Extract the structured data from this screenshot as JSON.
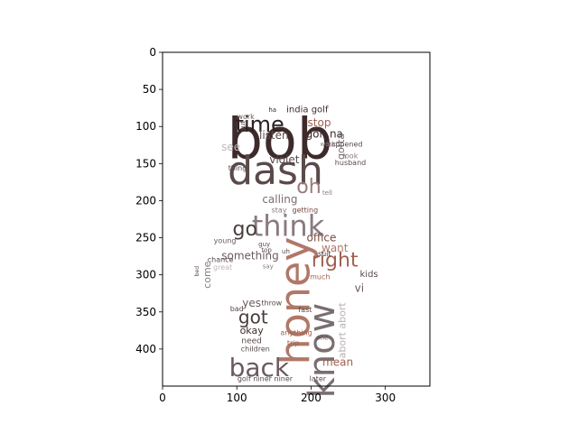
{
  "chart_data": {
    "type": "wordcloud",
    "xlim": [
      0,
      360
    ],
    "ylim": [
      450,
      0
    ],
    "x_ticks": [
      0,
      100,
      200,
      300
    ],
    "y_ticks": [
      0,
      50,
      100,
      150,
      200,
      250,
      300,
      350,
      400
    ],
    "grid": false,
    "legend": "none",
    "words": [
      {
        "text": "bob",
        "x": 158,
        "y": 117,
        "size": 62,
        "color": "#3d2b2b"
      },
      {
        "text": "dash",
        "x": 152,
        "y": 160,
        "size": 44,
        "color": "#5a4a4a"
      },
      {
        "text": "time",
        "x": 131,
        "y": 97,
        "size": 24,
        "color": "#2e2020"
      },
      {
        "text": "think",
        "x": 169,
        "y": 234,
        "size": 32,
        "color": "#8a7a80"
      },
      {
        "text": "honey",
        "x": 178,
        "y": 335,
        "size": 46,
        "color": "#b07868",
        "rotate": -90
      },
      {
        "text": "know",
        "x": 215,
        "y": 402,
        "size": 40,
        "color": "#7a6e70",
        "rotate": -90
      },
      {
        "text": "back",
        "x": 130,
        "y": 425,
        "size": 28,
        "color": "#6a5a60"
      },
      {
        "text": "oh",
        "x": 197,
        "y": 182,
        "size": 22,
        "color": "#9a7a7a"
      },
      {
        "text": "go",
        "x": 111,
        "y": 239,
        "size": 22,
        "color": "#4a3e3e"
      },
      {
        "text": "right",
        "x": 232,
        "y": 281,
        "size": 22,
        "color": "#a06050"
      },
      {
        "text": "got",
        "x": 122,
        "y": 357,
        "size": 20,
        "color": "#4a3a3a"
      },
      {
        "text": "stop",
        "x": 211,
        "y": 95,
        "size": 12,
        "color": "#a06050"
      },
      {
        "text": "gon na",
        "x": 218,
        "y": 110,
        "size": 12,
        "color": "#3d2b2b"
      },
      {
        "text": "listen",
        "x": 150,
        "y": 112,
        "size": 12,
        "color": "#5a4a4a"
      },
      {
        "text": "india golf",
        "x": 195,
        "y": 78,
        "size": 10,
        "color": "#3d2b2b"
      },
      {
        "text": "see",
        "x": 92,
        "y": 128,
        "size": 12,
        "color": "#c0b8b8"
      },
      {
        "text": "violet",
        "x": 164,
        "y": 145,
        "size": 12,
        "color": "#5a4a4a"
      },
      {
        "text": "calling",
        "x": 158,
        "y": 198,
        "size": 12,
        "color": "#7a6e70"
      },
      {
        "text": "office",
        "x": 214,
        "y": 250,
        "size": 12,
        "color": "#7a4a40"
      },
      {
        "text": "want",
        "x": 232,
        "y": 264,
        "size": 12,
        "color": "#b07868"
      },
      {
        "text": "something",
        "x": 118,
        "y": 274,
        "size": 12,
        "color": "#6a5a60"
      },
      {
        "text": "kids",
        "x": 278,
        "y": 300,
        "size": 10,
        "color": "#5a4a4a"
      },
      {
        "text": "vi",
        "x": 265,
        "y": 318,
        "size": 12,
        "color": "#6a5a60"
      },
      {
        "text": "yes",
        "x": 120,
        "y": 338,
        "size": 12,
        "color": "#6a5a60"
      },
      {
        "text": "okay",
        "x": 120,
        "y": 375,
        "size": 11,
        "color": "#3d2b2b"
      },
      {
        "text": "mean",
        "x": 236,
        "y": 418,
        "size": 12,
        "color": "#a06050"
      },
      {
        "text": "come",
        "x": 60,
        "y": 300,
        "size": 11,
        "color": "#8a7a80",
        "rotate": -90
      },
      {
        "text": "abort abort",
        "x": 242,
        "y": 375,
        "size": 11,
        "color": "#b8b0b0",
        "rotate": -90
      },
      {
        "text": "gotta",
        "x": 240,
        "y": 127,
        "size": 11,
        "color": "#7a6e70",
        "rotate": -90
      },
      {
        "text": "work",
        "x": 112,
        "y": 87,
        "size": 8,
        "color": "#6a5a60"
      },
      {
        "text": "put",
        "x": 108,
        "y": 100,
        "size": 8,
        "color": "#5a4a4a",
        "rotate": -90
      },
      {
        "text": "happened",
        "x": 245,
        "y": 124,
        "size": 8,
        "color": "#5a4a4a"
      },
      {
        "text": "look",
        "x": 253,
        "y": 140,
        "size": 8,
        "color": "#8a7a80"
      },
      {
        "text": "husband",
        "x": 253,
        "y": 149,
        "size": 8,
        "color": "#5a4a4a"
      },
      {
        "text": "thing",
        "x": 101,
        "y": 156,
        "size": 8,
        "color": "#5a4a4a"
      },
      {
        "text": "getting",
        "x": 192,
        "y": 213,
        "size": 8,
        "color": "#7a4a40"
      },
      {
        "text": "stay",
        "x": 157,
        "y": 213,
        "size": 8,
        "color": "#8a7a80"
      },
      {
        "text": "young",
        "x": 84,
        "y": 254,
        "size": 8,
        "color": "#6a5a60"
      },
      {
        "text": "chance",
        "x": 78,
        "y": 280,
        "size": 8,
        "color": "#5a4a4a"
      },
      {
        "text": "great",
        "x": 81,
        "y": 290,
        "size": 8,
        "color": "#c0b8b8"
      },
      {
        "text": "suit",
        "x": 218,
        "y": 272,
        "size": 8,
        "color": "#3d2b2b"
      },
      {
        "text": "much",
        "x": 212,
        "y": 303,
        "size": 8,
        "color": "#a06050"
      },
      {
        "text": "throw",
        "x": 147,
        "y": 338,
        "size": 8,
        "color": "#5a4a4a"
      },
      {
        "text": "bad",
        "x": 100,
        "y": 346,
        "size": 8,
        "color": "#5a4a4a"
      },
      {
        "text": "fast",
        "x": 192,
        "y": 347,
        "size": 8,
        "color": "#5a4a4a"
      },
      {
        "text": "anything",
        "x": 180,
        "y": 378,
        "size": 8,
        "color": "#a06050"
      },
      {
        "text": "trip",
        "x": 176,
        "y": 392,
        "size": 8,
        "color": "#a06050"
      },
      {
        "text": "need",
        "x": 120,
        "y": 390,
        "size": 9,
        "color": "#5a4a4a"
      },
      {
        "text": "children",
        "x": 125,
        "y": 400,
        "size": 8,
        "color": "#5a4a4a"
      },
      {
        "text": "golf niner niner",
        "x": 138,
        "y": 440,
        "size": 8,
        "color": "#5a4a4a"
      },
      {
        "text": "later",
        "x": 209,
        "y": 440,
        "size": 8,
        "color": "#5a4a4a"
      },
      {
        "text": "ha",
        "x": 148,
        "y": 78,
        "size": 7,
        "color": "#3d2b2b"
      },
      {
        "text": "world",
        "x": 224,
        "y": 124,
        "size": 7,
        "color": "#8a7a80"
      },
      {
        "text": "tell",
        "x": 222,
        "y": 190,
        "size": 7,
        "color": "#8a7a80"
      },
      {
        "text": "guy",
        "x": 137,
        "y": 259,
        "size": 7,
        "color": "#5a4a4a"
      },
      {
        "text": "top",
        "x": 140,
        "y": 267,
        "size": 7,
        "color": "#5a4a4a"
      },
      {
        "text": "uh",
        "x": 166,
        "y": 269,
        "size": 7,
        "color": "#5a4a4a"
      },
      {
        "text": "say",
        "x": 142,
        "y": 289,
        "size": 7,
        "color": "#8a7a80"
      },
      {
        "text": "bed",
        "x": 47,
        "y": 295,
        "size": 6,
        "color": "#5a4a4a",
        "rotate": -90
      },
      {
        "text": "one",
        "x": 215,
        "y": 385,
        "size": 7,
        "color": "#5a4a4a"
      }
    ]
  }
}
